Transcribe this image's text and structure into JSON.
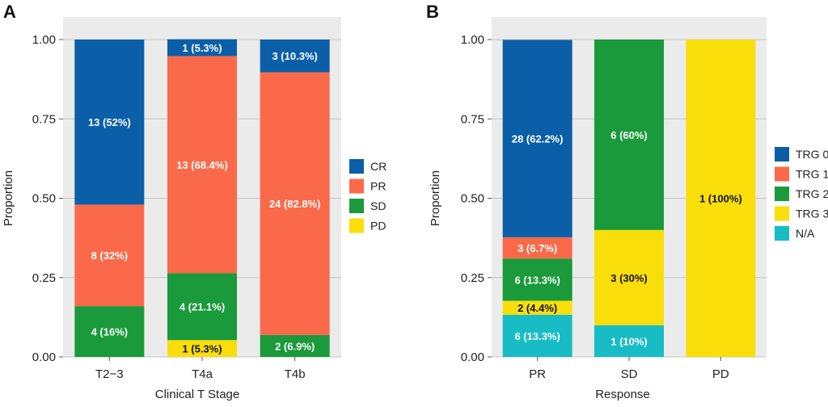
{
  "panels": [
    {
      "letter": "A",
      "xlabel": "Clinical T Stage",
      "ylabel": "Proportion",
      "legend": [
        "CR",
        "PR",
        "SD",
        "PD"
      ]
    },
    {
      "letter": "B",
      "xlabel": "Response",
      "ylabel": "Proportion",
      "legend": [
        "TRG 0",
        "TRG 1",
        "TRG 2",
        "TRG 3",
        "N/A"
      ]
    }
  ],
  "colors": {
    "CR": "#0a5fa8",
    "PR": "#fa6a4a",
    "SD": "#1a9a3a",
    "PD": "#f9de0a",
    "TRG 0": "#0a5fa8",
    "TRG 1": "#fa6a4a",
    "TRG 2": "#1a9a3a",
    "TRG 3": "#f9de0a",
    "N/A": "#18bcc4",
    "panel_bg": "#ebebeb",
    "grid": "#c4c4c4"
  },
  "chart_data": [
    {
      "type": "bar",
      "stacked": true,
      "categories": [
        "T2−3",
        "T4a",
        "T4b"
      ],
      "xlabel": "Clinical T Stage",
      "ylabel": "Proportion",
      "ylim": [
        0,
        1
      ],
      "yticks": [
        "0.00",
        "0.25",
        "0.50",
        "0.75",
        "1.00"
      ],
      "legend_position": "right",
      "series": [
        {
          "name": "PD",
          "values": [
            0,
            0.053,
            0
          ],
          "labels": [
            "",
            "1 (5.3%)",
            ""
          ]
        },
        {
          "name": "SD",
          "values": [
            0.16,
            0.211,
            0.069
          ],
          "labels": [
            "4 (16%)",
            "4 (21.1%)",
            "2 (6.9%)"
          ]
        },
        {
          "name": "PR",
          "values": [
            0.32,
            0.684,
            0.828
          ],
          "labels": [
            "8 (32%)",
            "13 (68.4%)",
            "24 (82.8%)"
          ]
        },
        {
          "name": "CR",
          "values": [
            0.52,
            0.053,
            0.103
          ],
          "labels": [
            "13 (52%)",
            "1 (5.3%)",
            "3 (10.3%)"
          ]
        }
      ]
    },
    {
      "type": "bar",
      "stacked": true,
      "categories": [
        "PR",
        "SD",
        "PD"
      ],
      "xlabel": "Response",
      "ylabel": "Proportion",
      "ylim": [
        0,
        1
      ],
      "yticks": [
        "0.00",
        "0.25",
        "0.50",
        "0.75",
        "1.00"
      ],
      "legend_position": "right",
      "series": [
        {
          "name": "N/A",
          "values": [
            0.133,
            0.1,
            0
          ],
          "labels": [
            "6 (13.3%)",
            "1 (10%)",
            ""
          ]
        },
        {
          "name": "TRG 3",
          "values": [
            0.044,
            0.3,
            1.0
          ],
          "labels": [
            "2 (4.4%)",
            "3 (30%)",
            "1 (100%)"
          ]
        },
        {
          "name": "TRG 2",
          "values": [
            0.133,
            0.6,
            0
          ],
          "labels": [
            "6 (13.3%)",
            "6 (60%)",
            ""
          ]
        },
        {
          "name": "TRG 1",
          "values": [
            0.067,
            0,
            0
          ],
          "labels": [
            "3 (6.7%)",
            "",
            ""
          ]
        },
        {
          "name": "TRG 0",
          "values": [
            0.622,
            0,
            0
          ],
          "labels": [
            "28 (62.2%)",
            "",
            ""
          ]
        }
      ]
    }
  ]
}
